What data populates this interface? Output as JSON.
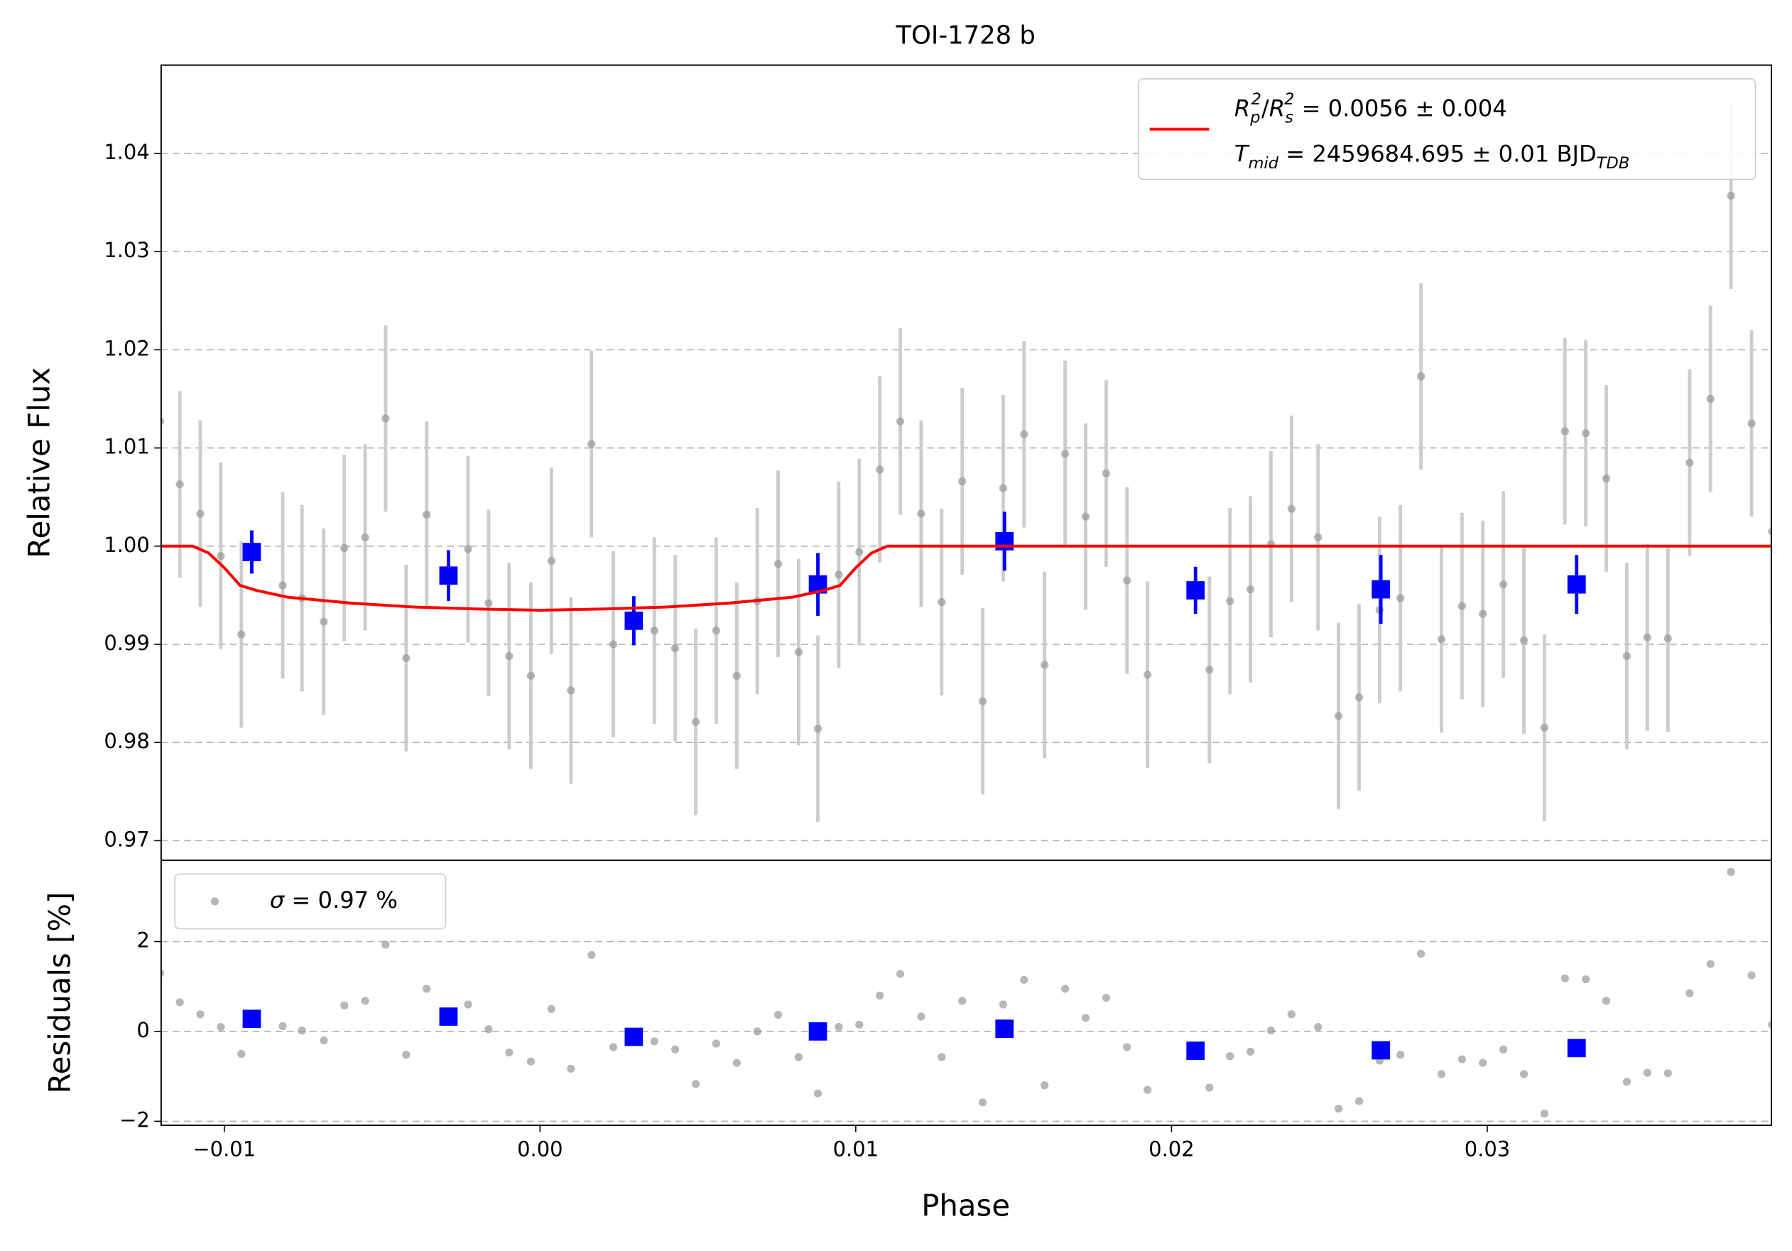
{
  "chart_data": [
    {
      "type": "scatter",
      "title": "TOI-1728 b",
      "ylabel": "Relative Flux",
      "xlim": [
        -0.012,
        0.039
      ],
      "ylim": [
        0.968,
        1.049
      ],
      "yticks": [
        0.97,
        0.98,
        0.99,
        {
          "value": 1.0,
          "label": "1.00"
        },
        1.01,
        1.02,
        1.03,
        1.04
      ],
      "grid": true,
      "legend": "upper right",
      "series": [
        {
          "color": "#999999",
          "error": 0.0095,
          "x": [
            -0.01203,
            -0.01141,
            -0.01076,
            -0.01011,
            -0.00946,
            -0.00815,
            -0.00754,
            -0.00685,
            -0.0062,
            -0.00554,
            -0.00489,
            -0.00424,
            -0.00359,
            -0.00228,
            -0.00163,
            -0.00098,
            -0.00029,
            0.00036,
            0.00098,
            0.00163,
            0.00232,
            0.00362,
            0.00428,
            0.00493,
            0.00558,
            0.00623,
            0.00688,
            0.00754,
            0.00819,
            0.0088,
            0.00946,
            0.01011,
            0.01076,
            0.01141,
            0.01207,
            0.01272,
            0.01337,
            0.01402,
            0.01467,
            0.01533,
            0.01598,
            0.01663,
            0.01728,
            0.01793,
            0.01859,
            0.01924,
            0.0212,
            0.02185,
            0.0225,
            0.02315,
            0.0238,
            0.02464,
            0.02529,
            0.02594,
            0.02659,
            0.02725,
            0.0279,
            0.02855,
            0.0292,
            0.02986,
            0.03051,
            0.03116,
            0.03181,
            0.03246,
            0.03312,
            0.03377,
            0.03442,
            0.03507,
            0.03572,
            0.03641,
            0.03707,
            0.03772,
            0.03837,
            0.03902
          ],
          "values": [
            1.0127,
            1.0063,
            1.0033,
            0.999,
            0.991,
            0.996,
            0.9947,
            0.9923,
            0.9998,
            1.0009,
            1.013,
            0.9886,
            1.0032,
            0.9997,
            0.9942,
            0.9888,
            0.9868,
            0.9985,
            0.9853,
            1.0104,
            0.99,
            0.9914,
            0.9896,
            0.9821,
            0.9914,
            0.9868,
            0.9944,
            0.9982,
            0.9892,
            0.9814,
            0.9971,
            0.9994,
            1.0078,
            1.0127,
            1.0033,
            0.9943,
            1.0066,
            0.9842,
            1.0059,
            1.0114,
            0.9879,
            1.0094,
            1.003,
            1.0074,
            0.9965,
            0.9869,
            0.9874,
            0.9944,
            0.9956,
            1.0002,
            1.0038,
            1.0009,
            0.9827,
            0.9846,
            0.9935,
            0.9947,
            1.0173,
            0.9905,
            0.9939,
            0.9931,
            0.9961,
            0.9904,
            0.9815,
            1.0117,
            1.0115,
            1.0069,
            0.9888,
            0.9907,
            0.9906,
            1.0085,
            1.015,
            1.0357,
            1.0125,
            1.0015
          ]
        },
        {
          "color": "#0000ff",
          "x": [
            -0.00913,
            -0.0029,
            0.00297,
            0.0088,
            0.01471,
            0.02076,
            0.02663,
            0.03283
          ],
          "values": [
            0.9994,
            0.997,
            0.9924,
            0.9961,
            1.0005,
            0.9955,
            0.9956,
            0.9961
          ],
          "errors": [
            0.0022,
            0.0026,
            0.0025,
            0.0032,
            0.003,
            0.0024,
            0.0035,
            0.003
          ]
        },
        {
          "color": "#ff0000",
          "line": true,
          "name": [
            [
              [
                "R",
                "i"
              ],
              [
                "p",
                "sub"
              ],
              [
                "2",
                "sup"
              ],
              [
                "/",
                ""
              ],
              [
                "R",
                "i"
              ],
              [
                "s",
                "sub"
              ],
              [
                "2",
                "sup"
              ],
              [
                " = 0.0056 ± 0.004",
                ""
              ]
            ],
            [
              [
                "T",
                "i"
              ],
              [
                "mid",
                "sub"
              ],
              [
                " = 2459684.695 ± 0.01 BJD",
                ""
              ],
              [
                "TDB",
                "sub"
              ]
            ]
          ],
          "x": [
            -0.012,
            -0.011,
            -0.0105,
            -0.01,
            -0.0095,
            -0.009,
            -0.008,
            -0.006,
            -0.004,
            -0.002,
            0.0,
            0.002,
            0.004,
            0.006,
            0.008,
            0.009,
            0.0095,
            0.01,
            0.0105,
            0.011,
            0.039
          ],
          "values": [
            1.0,
            1.0,
            0.9993,
            0.9978,
            0.996,
            0.9955,
            0.9948,
            0.9942,
            0.9938,
            0.9936,
            0.99347,
            0.9936,
            0.9938,
            0.9942,
            0.9948,
            0.9955,
            0.996,
            0.9978,
            0.9993,
            1.0,
            1.0
          ]
        }
      ]
    },
    {
      "type": "scatter",
      "ylabel": "Residuals [%]",
      "xlabel": "Phase",
      "xlim": [
        -0.012,
        0.039
      ],
      "ylim": [
        -2.09,
        3.81
      ],
      "xticks": [
        {
          "value": -0.01,
          "label": "−0.01"
        },
        {
          "value": 0,
          "label": "0.00"
        },
        0.01,
        0.02,
        0.03
      ],
      "yticks": [
        {
          "value": -2,
          "label": "−2"
        },
        0,
        2
      ],
      "grid": true,
      "legend": "upper left",
      "series": [
        {
          "color": "#999999",
          "name": [
            [
              [
                "σ",
                "i"
              ],
              [
                " = 0.97 %",
                ""
              ]
            ]
          ],
          "x": [
            -0.01203,
            -0.01141,
            -0.01076,
            -0.01011,
            -0.00946,
            -0.00815,
            -0.00754,
            -0.00685,
            -0.0062,
            -0.00554,
            -0.00489,
            -0.00424,
            -0.00359,
            -0.00228,
            -0.00163,
            -0.00098,
            -0.00029,
            0.00036,
            0.00098,
            0.00163,
            0.00232,
            0.00362,
            0.00428,
            0.00493,
            0.00558,
            0.00623,
            0.00688,
            0.00754,
            0.00819,
            0.0088,
            0.00946,
            0.01011,
            0.01076,
            0.01141,
            0.01207,
            0.01272,
            0.01337,
            0.01402,
            0.01467,
            0.01533,
            0.01598,
            0.01663,
            0.01728,
            0.01793,
            0.01859,
            0.01924,
            0.0212,
            0.02185,
            0.0225,
            0.02315,
            0.0238,
            0.02464,
            0.02529,
            0.02594,
            0.02659,
            0.02725,
            0.0279,
            0.02855,
            0.0292,
            0.02986,
            0.03051,
            0.03116,
            0.03181,
            0.03246,
            0.03312,
            0.03377,
            0.03442,
            0.03507,
            0.03572,
            0.03641,
            0.03707,
            0.03772,
            0.03837,
            0.03902
          ],
          "values": [
            1.3,
            0.65,
            0.38,
            0.1,
            -0.5,
            0.12,
            0.02,
            -0.2,
            0.58,
            0.68,
            1.93,
            -0.52,
            0.95,
            0.6,
            0.05,
            -0.47,
            -0.67,
            0.5,
            -0.83,
            1.7,
            -0.35,
            -0.22,
            -0.4,
            -1.17,
            -0.27,
            -0.7,
            0.0,
            0.37,
            -0.57,
            -1.38,
            0.1,
            0.15,
            0.8,
            1.28,
            0.33,
            -0.57,
            0.68,
            -1.58,
            0.6,
            1.15,
            -1.2,
            0.95,
            0.3,
            0.75,
            -0.35,
            -1.3,
            -1.25,
            -0.55,
            -0.45,
            0.02,
            0.38,
            0.1,
            -1.72,
            -1.55,
            -0.65,
            -0.52,
            1.73,
            -0.95,
            -0.62,
            -0.7,
            -0.4,
            -0.95,
            -1.83,
            1.18,
            1.16,
            0.68,
            -1.12,
            -0.92,
            -0.93,
            0.85,
            1.5,
            3.55,
            1.25,
            0.15
          ]
        },
        {
          "color": "#0000ff",
          "x": [
            -0.00913,
            -0.0029,
            0.00297,
            0.0088,
            0.01471,
            0.02076,
            0.02663,
            0.03283
          ],
          "values": [
            0.28,
            0.33,
            -0.12,
            0.0,
            0.06,
            -0.43,
            -0.42,
            -0.37
          ]
        }
      ]
    }
  ]
}
